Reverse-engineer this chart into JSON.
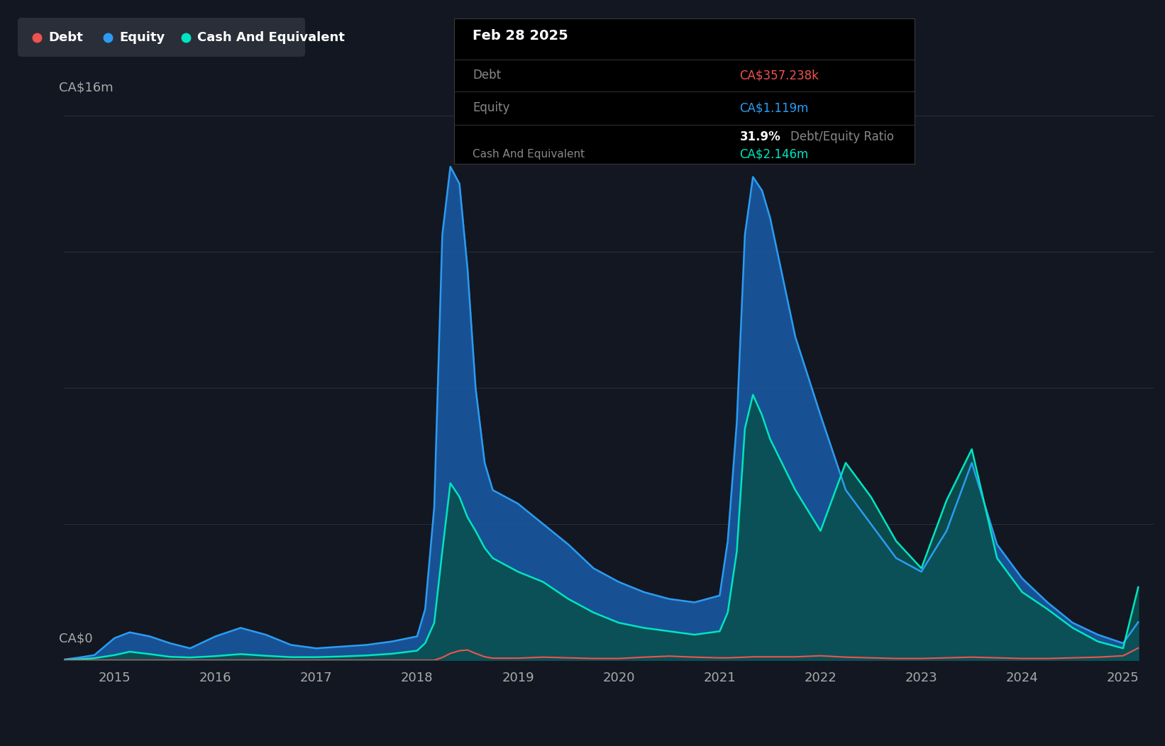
{
  "bg_color": "#131722",
  "grid_color": "#2a2e39",
  "debt_color": "#ef5350",
  "equity_color": "#2b9cf2",
  "cash_color": "#00e5c0",
  "equity_fill_color": "#1a5ca8",
  "cash_fill_color": "#0a5050",
  "legend_bg": "#2a2e39",
  "dates": [
    2014.5,
    2014.65,
    2014.8,
    2015.0,
    2015.15,
    2015.35,
    2015.55,
    2015.75,
    2016.0,
    2016.25,
    2016.5,
    2016.75,
    2017.0,
    2017.25,
    2017.5,
    2017.75,
    2018.0,
    2018.08,
    2018.17,
    2018.25,
    2018.33,
    2018.42,
    2018.5,
    2018.58,
    2018.67,
    2018.75,
    2019.0,
    2019.25,
    2019.5,
    2019.75,
    2020.0,
    2020.25,
    2020.5,
    2020.75,
    2021.0,
    2021.08,
    2021.17,
    2021.25,
    2021.33,
    2021.42,
    2021.5,
    2021.75,
    2022.0,
    2022.25,
    2022.5,
    2022.75,
    2023.0,
    2023.25,
    2023.5,
    2023.75,
    2024.0,
    2024.25,
    2024.5,
    2024.75,
    2025.0,
    2025.15
  ],
  "equity": [
    20000,
    80000,
    150000,
    650000,
    820000,
    700000,
    500000,
    350000,
    700000,
    950000,
    750000,
    450000,
    350000,
    400000,
    450000,
    550000,
    700000,
    1500000,
    4500000,
    12500000,
    14500000,
    14000000,
    11500000,
    8000000,
    5800000,
    5000000,
    4600000,
    4000000,
    3400000,
    2700000,
    2300000,
    2000000,
    1800000,
    1700000,
    1900000,
    3500000,
    7000000,
    12500000,
    14200000,
    13800000,
    13000000,
    9500000,
    7200000,
    5000000,
    4000000,
    3000000,
    2600000,
    3800000,
    5800000,
    3400000,
    2400000,
    1700000,
    1100000,
    750000,
    500000,
    1119000
  ],
  "cash": [
    0,
    30000,
    60000,
    150000,
    250000,
    180000,
    100000,
    80000,
    120000,
    180000,
    130000,
    90000,
    90000,
    110000,
    140000,
    190000,
    280000,
    500000,
    1100000,
    3200000,
    5200000,
    4800000,
    4200000,
    3800000,
    3300000,
    3000000,
    2600000,
    2300000,
    1800000,
    1400000,
    1100000,
    950000,
    850000,
    750000,
    850000,
    1400000,
    3200000,
    6800000,
    7800000,
    7200000,
    6500000,
    5000000,
    3800000,
    5800000,
    4800000,
    3500000,
    2700000,
    4700000,
    6200000,
    3000000,
    2000000,
    1500000,
    950000,
    550000,
    350000,
    2146000
  ],
  "debt": [
    0,
    0,
    0,
    0,
    0,
    0,
    0,
    0,
    0,
    0,
    0,
    0,
    0,
    0,
    0,
    0,
    0,
    0,
    0,
    80000,
    200000,
    280000,
    300000,
    200000,
    100000,
    60000,
    60000,
    90000,
    70000,
    50000,
    50000,
    90000,
    120000,
    90000,
    70000,
    70000,
    80000,
    90000,
    100000,
    100000,
    100000,
    100000,
    130000,
    90000,
    70000,
    50000,
    50000,
    70000,
    90000,
    70000,
    50000,
    50000,
    70000,
    90000,
    130000,
    357238
  ],
  "xticks": [
    2015,
    2016,
    2017,
    2018,
    2019,
    2020,
    2021,
    2022,
    2023,
    2024,
    2025
  ],
  "ylim": [
    0,
    16000000
  ],
  "xlim": [
    2014.5,
    2025.3
  ],
  "tooltip": {
    "title": "Feb 28 2025",
    "rows": [
      {
        "label": "Debt",
        "value": "CA$357.238k",
        "value_color": "#ef5350"
      },
      {
        "label": "Equity",
        "value": "CA$1.119m",
        "value_color": "#2b9cf2"
      },
      {
        "label": "",
        "value": "31.9%",
        "value_color": "#ffffff",
        "extra": "Debt/Equity Ratio",
        "extra_color": "#888888"
      },
      {
        "label": "Cash And Equivalent",
        "value": "CA$2.146m",
        "value_color": "#00e5c0"
      }
    ]
  }
}
